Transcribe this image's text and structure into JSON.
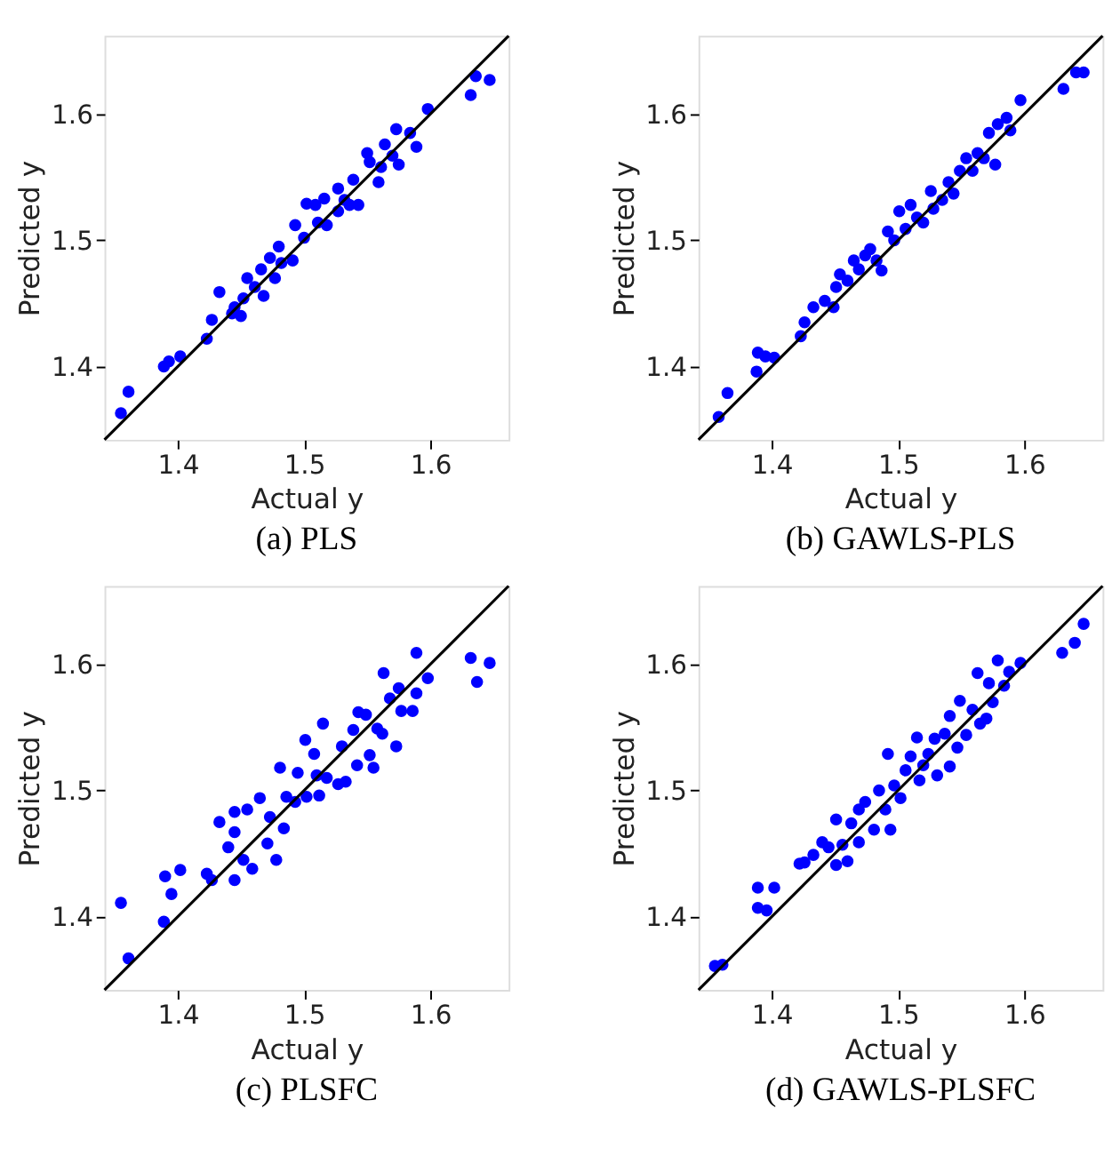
{
  "chart_data": [
    {
      "type": "scatter",
      "title": "(a) PLS",
      "xlabel": "Actual y",
      "ylabel": "Predicted y",
      "xlim": [
        1.342,
        1.662
      ],
      "ylim": [
        1.342,
        1.662
      ],
      "xticks": [
        1.4,
        1.5,
        1.6
      ],
      "yticks": [
        1.4,
        1.5,
        1.6
      ],
      "grid": false,
      "series": [
        {
          "color": "#0000ff",
          "x": [
            1.355,
            1.361,
            1.389,
            1.393,
            1.402,
            1.423,
            1.427,
            1.433,
            1.445,
            1.45,
            1.452,
            1.455,
            1.461,
            1.468,
            1.466,
            1.473,
            1.48,
            1.482,
            1.491,
            1.493,
            1.5,
            1.502,
            1.509,
            1.511,
            1.516,
            1.518,
            1.527,
            1.527,
            1.536,
            1.539,
            1.543,
            1.55,
            1.552,
            1.559,
            1.561,
            1.564,
            1.57,
            1.573,
            1.575,
            1.584,
            1.589,
            1.598,
            1.632,
            1.636,
            1.647,
            1.443,
            1.477,
            1.532
          ],
          "values": [
            1.363,
            1.38,
            1.4,
            1.404,
            1.408,
            1.422,
            1.437,
            1.459,
            1.447,
            1.44,
            1.454,
            1.47,
            1.463,
            1.456,
            1.477,
            1.486,
            1.495,
            1.482,
            1.484,
            1.512,
            1.502,
            1.529,
            1.528,
            1.514,
            1.533,
            1.512,
            1.541,
            1.523,
            1.528,
            1.548,
            1.528,
            1.569,
            1.562,
            1.546,
            1.558,
            1.576,
            1.567,
            1.588,
            1.56,
            1.585,
            1.574,
            1.604,
            1.615,
            1.63,
            1.627,
            1.442,
            1.47,
            1.532
          ]
        },
        {
          "type": "line",
          "color": "#000000",
          "x": [
            1.342,
            1.662
          ],
          "values": [
            1.342,
            1.662
          ]
        }
      ]
    },
    {
      "type": "scatter",
      "title": "(b) GAWLS-PLS",
      "xlabel": "Actual y",
      "ylabel": "Predicted y",
      "xlim": [
        1.342,
        1.662
      ],
      "ylim": [
        1.342,
        1.662
      ],
      "xticks": [
        1.4,
        1.5,
        1.6
      ],
      "yticks": [
        1.4,
        1.5,
        1.6
      ],
      "grid": false,
      "series": [
        {
          "color": "#0000ff",
          "x": [
            1.358,
            1.365,
            1.388,
            1.389,
            1.395,
            1.402,
            1.423,
            1.426,
            1.433,
            1.442,
            1.449,
            1.451,
            1.454,
            1.46,
            1.465,
            1.469,
            1.474,
            1.478,
            1.483,
            1.487,
            1.492,
            1.497,
            1.501,
            1.506,
            1.51,
            1.515,
            1.52,
            1.526,
            1.528,
            1.535,
            1.54,
            1.544,
            1.549,
            1.554,
            1.559,
            1.563,
            1.568,
            1.572,
            1.577,
            1.579,
            1.586,
            1.589,
            1.597,
            1.631,
            1.641,
            1.647
          ],
          "values": [
            1.36,
            1.379,
            1.396,
            1.411,
            1.408,
            1.407,
            1.424,
            1.435,
            1.447,
            1.452,
            1.447,
            1.463,
            1.473,
            1.468,
            1.484,
            1.477,
            1.488,
            1.493,
            1.484,
            1.476,
            1.507,
            1.5,
            1.523,
            1.509,
            1.528,
            1.518,
            1.514,
            1.539,
            1.525,
            1.532,
            1.546,
            1.537,
            1.555,
            1.565,
            1.555,
            1.569,
            1.565,
            1.585,
            1.56,
            1.592,
            1.597,
            1.587,
            1.611,
            1.62,
            1.633,
            1.633
          ]
        },
        {
          "type": "line",
          "color": "#000000",
          "x": [
            1.342,
            1.662
          ],
          "values": [
            1.342,
            1.662
          ]
        }
      ]
    },
    {
      "type": "scatter",
      "title": "(c) PLSFC",
      "xlabel": "Actual y",
      "ylabel": "Predicted y",
      "xlim": [
        1.342,
        1.662
      ],
      "ylim": [
        1.342,
        1.662
      ],
      "xticks": [
        1.4,
        1.5,
        1.6
      ],
      "yticks": [
        1.4,
        1.5,
        1.6
      ],
      "grid": false,
      "series": [
        {
          "color": "#0000ff",
          "x": [
            1.355,
            1.361,
            1.389,
            1.39,
            1.395,
            1.402,
            1.423,
            1.427,
            1.433,
            1.44,
            1.445,
            1.445,
            1.445,
            1.452,
            1.459,
            1.455,
            1.465,
            1.471,
            1.473,
            1.478,
            1.481,
            1.484,
            1.486,
            1.493,
            1.495,
            1.501,
            1.502,
            1.508,
            1.51,
            1.512,
            1.515,
            1.518,
            1.527,
            1.53,
            1.533,
            1.539,
            1.542,
            1.543,
            1.549,
            1.552,
            1.555,
            1.558,
            1.562,
            1.563,
            1.568,
            1.573,
            1.575,
            1.577,
            1.586,
            1.589,
            1.589,
            1.598,
            1.632,
            1.637,
            1.647
          ],
          "values": [
            1.411,
            1.367,
            1.396,
            1.432,
            1.418,
            1.437,
            1.434,
            1.429,
            1.475,
            1.455,
            1.483,
            1.429,
            1.467,
            1.445,
            1.438,
            1.485,
            1.494,
            1.458,
            1.479,
            1.445,
            1.518,
            1.47,
            1.495,
            1.491,
            1.514,
            1.54,
            1.495,
            1.529,
            1.512,
            1.496,
            1.553,
            1.51,
            1.505,
            1.535,
            1.507,
            1.548,
            1.52,
            1.562,
            1.56,
            1.528,
            1.518,
            1.549,
            1.545,
            1.593,
            1.573,
            1.535,
            1.581,
            1.563,
            1.563,
            1.609,
            1.577,
            1.589,
            1.605,
            1.586,
            1.601
          ]
        },
        {
          "type": "line",
          "color": "#000000",
          "x": [
            1.342,
            1.662
          ],
          "values": [
            1.342,
            1.662
          ]
        }
      ]
    },
    {
      "type": "scatter",
      "title": "(d) GAWLS-PLSFC",
      "xlabel": "Actual y",
      "ylabel": "Predicted y",
      "xlim": [
        1.342,
        1.662
      ],
      "ylim": [
        1.342,
        1.662
      ],
      "xticks": [
        1.4,
        1.5,
        1.6
      ],
      "yticks": [
        1.4,
        1.5,
        1.6
      ],
      "grid": false,
      "series": [
        {
          "color": "#0000ff",
          "x": [
            1.355,
            1.361,
            1.389,
            1.389,
            1.396,
            1.402,
            1.422,
            1.426,
            1.433,
            1.44,
            1.445,
            1.451,
            1.451,
            1.456,
            1.46,
            1.463,
            1.469,
            1.469,
            1.474,
            1.481,
            1.485,
            1.49,
            1.492,
            1.494,
            1.497,
            1.502,
            1.506,
            1.51,
            1.515,
            1.517,
            1.52,
            1.524,
            1.529,
            1.531,
            1.537,
            1.541,
            1.541,
            1.547,
            1.549,
            1.554,
            1.559,
            1.563,
            1.565,
            1.57,
            1.572,
            1.575,
            1.579,
            1.584,
            1.588,
            1.597,
            1.63,
            1.64,
            1.647
          ],
          "values": [
            1.361,
            1.362,
            1.423,
            1.407,
            1.405,
            1.423,
            1.442,
            1.443,
            1.449,
            1.459,
            1.455,
            1.441,
            1.477,
            1.457,
            1.444,
            1.474,
            1.459,
            1.485,
            1.491,
            1.469,
            1.5,
            1.485,
            1.529,
            1.469,
            1.504,
            1.494,
            1.516,
            1.527,
            1.542,
            1.508,
            1.52,
            1.529,
            1.541,
            1.512,
            1.545,
            1.519,
            1.559,
            1.534,
            1.571,
            1.544,
            1.564,
            1.593,
            1.553,
            1.557,
            1.585,
            1.57,
            1.603,
            1.583,
            1.594,
            1.601,
            1.609,
            1.617,
            1.632
          ]
        },
        {
          "type": "line",
          "color": "#000000",
          "x": [
            1.342,
            1.662
          ],
          "values": [
            1.342,
            1.662
          ]
        }
      ]
    }
  ]
}
